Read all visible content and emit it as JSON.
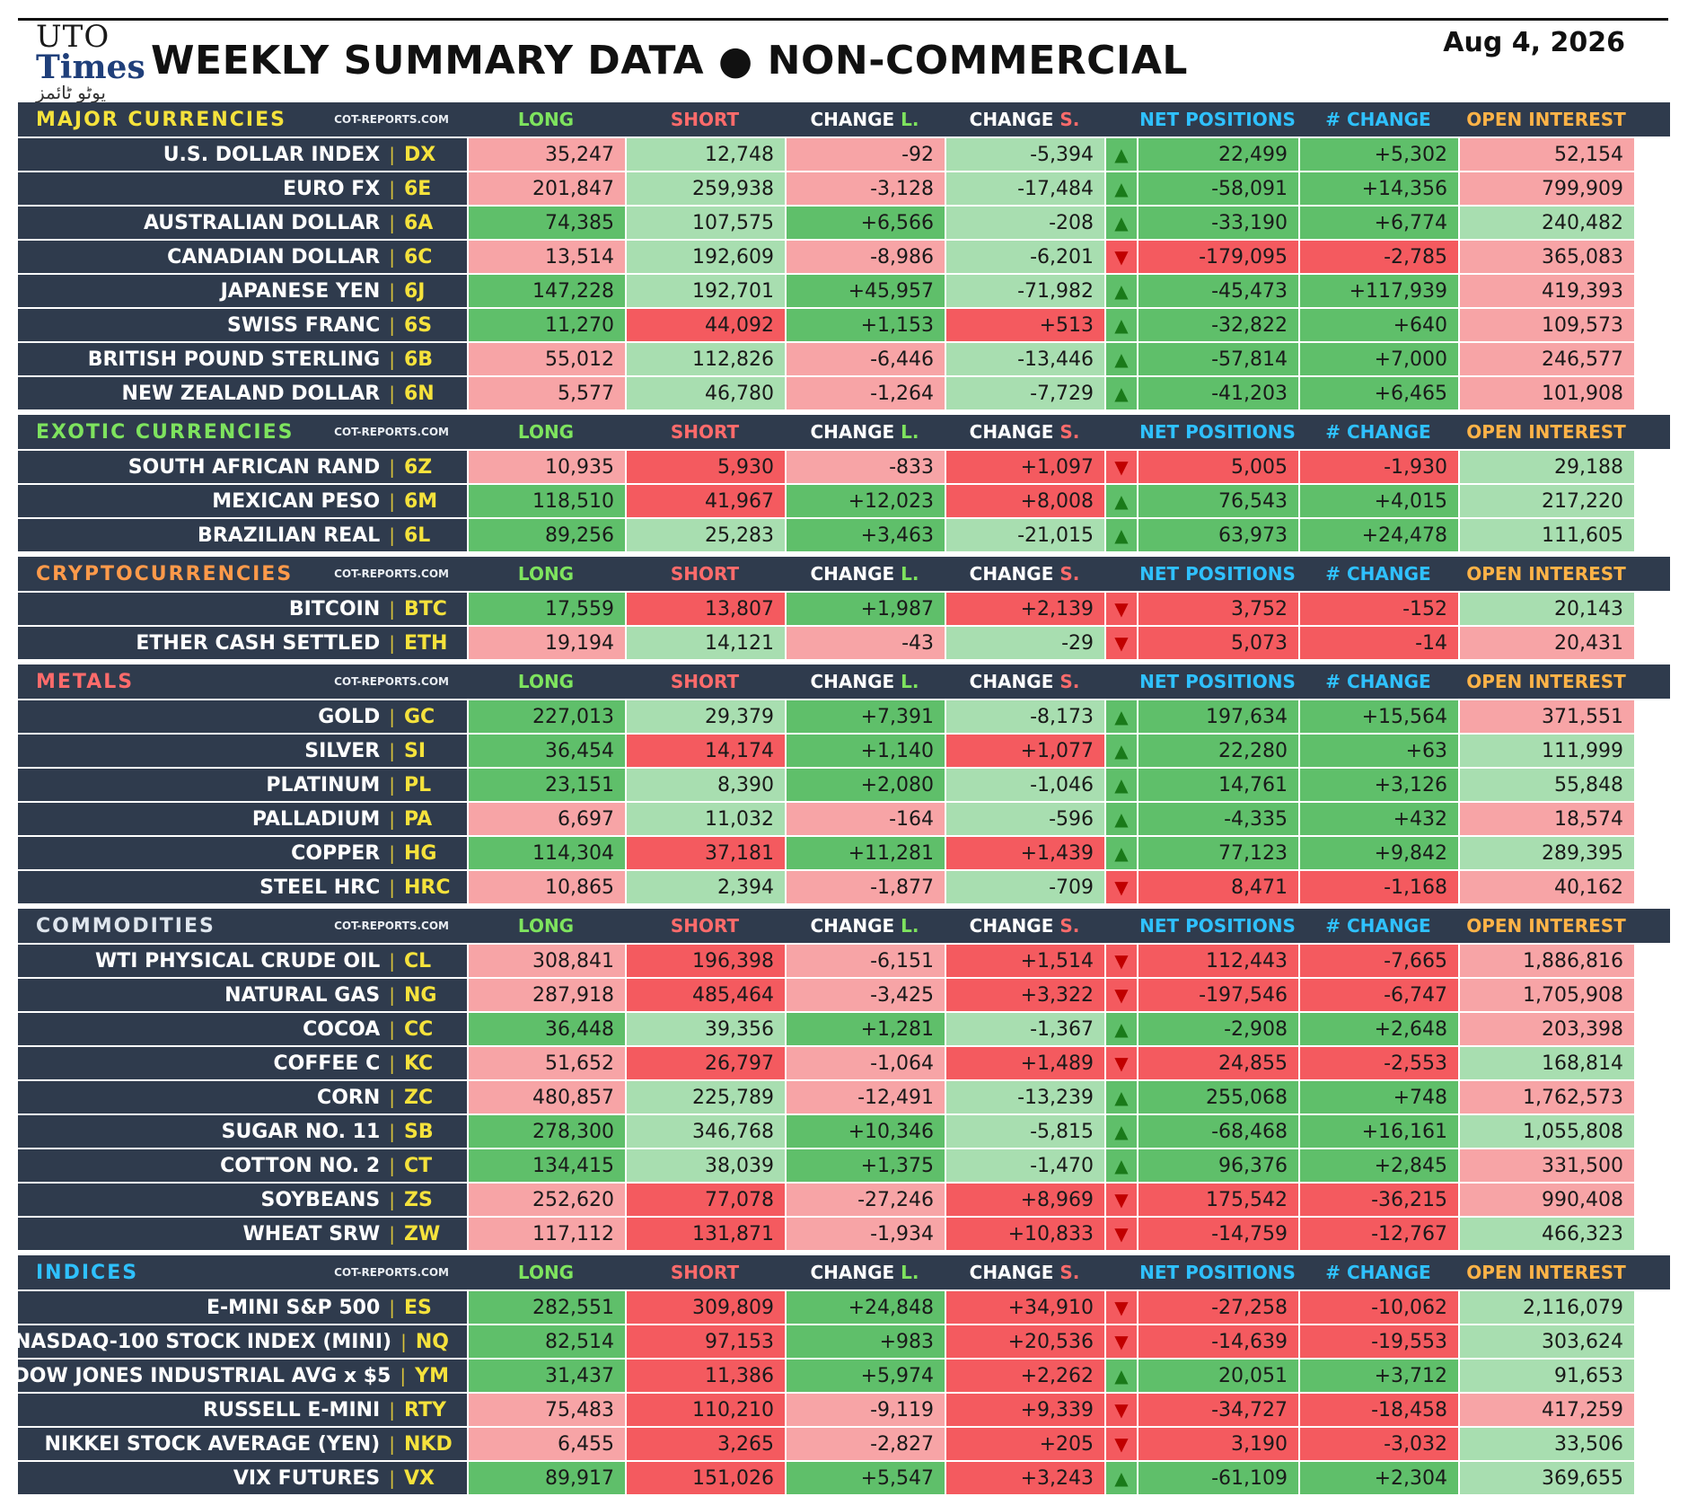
{
  "header": {
    "logo_top": "UTO",
    "logo_main": "Times",
    "logo_urdu": "یوٹو ٹائمز",
    "title": "WEEKLY SUMMARY DATA ● NON-COMMERCIAL",
    "date": "Aug 4, 2026"
  },
  "columns": {
    "source": "COT-REPORTS.COM",
    "long": "LONG",
    "short": "SHORT",
    "change_l_a": "CHANGE ",
    "change_l_b": "L.",
    "change_s_a": "CHANGE ",
    "change_s_b": "S.",
    "net": "NET POSITIONS",
    "change": "# CHANGE",
    "oi": "OPEN INTEREST"
  },
  "colors": {
    "green": "#5fbf6a",
    "light_green": "#a8deb0",
    "red": "#f45a5f",
    "light_red": "#f7a4a6",
    "header_bg": "#2f3b4d"
  },
  "sections": [
    {
      "name": "MAJOR CURRENCIES",
      "color": "#f5e23c",
      "rows": [
        {
          "name": "U.S. DOLLAR INDEX",
          "code": "DX",
          "long": "35,247",
          "short": "12,748",
          "chl": "-92",
          "chs": "-5,394",
          "dir": "up",
          "net": "22,499",
          "nch": "+5,302",
          "oi": "52,154",
          "bg": [
            "lr",
            "lg",
            "lr",
            "lg",
            "g",
            "g",
            "lr"
          ]
        },
        {
          "name": "EURO FX",
          "code": "6E",
          "long": "201,847",
          "short": "259,938",
          "chl": "-3,128",
          "chs": "-17,484",
          "dir": "up",
          "net": "-58,091",
          "nch": "+14,356",
          "oi": "799,909",
          "bg": [
            "lr",
            "lg",
            "lr",
            "lg",
            "g",
            "g",
            "lr"
          ]
        },
        {
          "name": "AUSTRALIAN DOLLAR",
          "code": "6A",
          "long": "74,385",
          "short": "107,575",
          "chl": "+6,566",
          "chs": "-208",
          "dir": "up",
          "net": "-33,190",
          "nch": "+6,774",
          "oi": "240,482",
          "bg": [
            "g",
            "lg",
            "g",
            "lg",
            "g",
            "g",
            "lg"
          ]
        },
        {
          "name": "CANADIAN DOLLAR",
          "code": "6C",
          "long": "13,514",
          "short": "192,609",
          "chl": "-8,986",
          "chs": "-6,201",
          "dir": "down",
          "net": "-179,095",
          "nch": "-2,785",
          "oi": "365,083",
          "bg": [
            "lr",
            "lg",
            "lr",
            "lg",
            "r",
            "r",
            "lr"
          ]
        },
        {
          "name": "JAPANESE YEN",
          "code": "6J",
          "long": "147,228",
          "short": "192,701",
          "chl": "+45,957",
          "chs": "-71,982",
          "dir": "up",
          "net": "-45,473",
          "nch": "+117,939",
          "oi": "419,393",
          "bg": [
            "g",
            "lg",
            "g",
            "lg",
            "g",
            "g",
            "lr"
          ]
        },
        {
          "name": "SWISS FRANC",
          "code": "6S",
          "long": "11,270",
          "short": "44,092",
          "chl": "+1,153",
          "chs": "+513",
          "dir": "up",
          "net": "-32,822",
          "nch": "+640",
          "oi": "109,573",
          "bg": [
            "g",
            "r",
            "g",
            "r",
            "g",
            "g",
            "lr"
          ]
        },
        {
          "name": "BRITISH POUND STERLING",
          "code": "6B",
          "long": "55,012",
          "short": "112,826",
          "chl": "-6,446",
          "chs": "-13,446",
          "dir": "up",
          "net": "-57,814",
          "nch": "+7,000",
          "oi": "246,577",
          "bg": [
            "lr",
            "lg",
            "lr",
            "lg",
            "g",
            "g",
            "lr"
          ]
        },
        {
          "name": "NEW ZEALAND DOLLAR",
          "code": "6N",
          "long": "5,577",
          "short": "46,780",
          "chl": "-1,264",
          "chs": "-7,729",
          "dir": "up",
          "net": "-41,203",
          "nch": "+6,465",
          "oi": "101,908",
          "bg": [
            "lr",
            "lg",
            "lr",
            "lg",
            "g",
            "g",
            "lr"
          ]
        }
      ]
    },
    {
      "name": "EXOTIC CURRENCIES",
      "color": "#7ee35e",
      "rows": [
        {
          "name": "SOUTH AFRICAN RAND",
          "code": "6Z",
          "long": "10,935",
          "short": "5,930",
          "chl": "-833",
          "chs": "+1,097",
          "dir": "down",
          "net": "5,005",
          "nch": "-1,930",
          "oi": "29,188",
          "bg": [
            "lr",
            "r",
            "lr",
            "r",
            "r",
            "r",
            "lg"
          ]
        },
        {
          "name": "MEXICAN PESO",
          "code": "6M",
          "long": "118,510",
          "short": "41,967",
          "chl": "+12,023",
          "chs": "+8,008",
          "dir": "up",
          "net": "76,543",
          "nch": "+4,015",
          "oi": "217,220",
          "bg": [
            "g",
            "r",
            "g",
            "r",
            "g",
            "g",
            "lg"
          ]
        },
        {
          "name": "BRAZILIAN REAL",
          "code": "6L",
          "long": "89,256",
          "short": "25,283",
          "chl": "+3,463",
          "chs": "-21,015",
          "dir": "up",
          "net": "63,973",
          "nch": "+24,478",
          "oi": "111,605",
          "bg": [
            "g",
            "lg",
            "g",
            "lg",
            "g",
            "g",
            "lg"
          ]
        }
      ]
    },
    {
      "name": "CRYPTOCURRENCIES",
      "color": "#ff9a4a",
      "rows": [
        {
          "name": "BITCOIN",
          "code": "BTC",
          "long": "17,559",
          "short": "13,807",
          "chl": "+1,987",
          "chs": "+2,139",
          "dir": "down",
          "net": "3,752",
          "nch": "-152",
          "oi": "20,143",
          "bg": [
            "g",
            "r",
            "g",
            "r",
            "r",
            "r",
            "lg"
          ]
        },
        {
          "name": "ETHER CASH SETTLED",
          "code": "ETH",
          "long": "19,194",
          "short": "14,121",
          "chl": "-43",
          "chs": "-29",
          "dir": "down",
          "net": "5,073",
          "nch": "-14",
          "oi": "20,431",
          "bg": [
            "lr",
            "lg",
            "lr",
            "lg",
            "r",
            "r",
            "lr"
          ]
        }
      ]
    },
    {
      "name": "METALS",
      "color": "#ff6b6b",
      "rows": [
        {
          "name": "GOLD",
          "code": "GC",
          "long": "227,013",
          "short": "29,379",
          "chl": "+7,391",
          "chs": "-8,173",
          "dir": "up",
          "net": "197,634",
          "nch": "+15,564",
          "oi": "371,551",
          "bg": [
            "g",
            "lg",
            "g",
            "lg",
            "g",
            "g",
            "lr"
          ]
        },
        {
          "name": "SILVER",
          "code": "SI",
          "long": "36,454",
          "short": "14,174",
          "chl": "+1,140",
          "chs": "+1,077",
          "dir": "up",
          "net": "22,280",
          "nch": "+63",
          "oi": "111,999",
          "bg": [
            "g",
            "r",
            "g",
            "r",
            "g",
            "g",
            "lg"
          ]
        },
        {
          "name": "PLATINUM",
          "code": "PL",
          "long": "23,151",
          "short": "8,390",
          "chl": "+2,080",
          "chs": "-1,046",
          "dir": "up",
          "net": "14,761",
          "nch": "+3,126",
          "oi": "55,848",
          "bg": [
            "g",
            "lg",
            "g",
            "lg",
            "g",
            "g",
            "lg"
          ]
        },
        {
          "name": "PALLADIUM",
          "code": "PA",
          "long": "6,697",
          "short": "11,032",
          "chl": "-164",
          "chs": "-596",
          "dir": "up",
          "net": "-4,335",
          "nch": "+432",
          "oi": "18,574",
          "bg": [
            "lr",
            "lg",
            "lr",
            "lg",
            "g",
            "g",
            "lr"
          ]
        },
        {
          "name": "COPPER",
          "code": "HG",
          "long": "114,304",
          "short": "37,181",
          "chl": "+11,281",
          "chs": "+1,439",
          "dir": "up",
          "net": "77,123",
          "nch": "+9,842",
          "oi": "289,395",
          "bg": [
            "g",
            "r",
            "g",
            "r",
            "g",
            "g",
            "lg"
          ]
        },
        {
          "name": "STEEL HRC",
          "code": "HRC",
          "long": "10,865",
          "short": "2,394",
          "chl": "-1,877",
          "chs": "-709",
          "dir": "down",
          "net": "8,471",
          "nch": "-1,168",
          "oi": "40,162",
          "bg": [
            "lr",
            "lg",
            "lr",
            "lg",
            "r",
            "r",
            "lr"
          ]
        }
      ]
    },
    {
      "name": "COMMODITIES",
      "color": "#dfe6ee",
      "rows": [
        {
          "name": "WTI PHYSICAL CRUDE OIL",
          "code": "CL",
          "long": "308,841",
          "short": "196,398",
          "chl": "-6,151",
          "chs": "+1,514",
          "dir": "down",
          "net": "112,443",
          "nch": "-7,665",
          "oi": "1,886,816",
          "bg": [
            "lr",
            "r",
            "lr",
            "r",
            "r",
            "r",
            "lr"
          ]
        },
        {
          "name": "NATURAL GAS",
          "code": "NG",
          "long": "287,918",
          "short": "485,464",
          "chl": "-3,425",
          "chs": "+3,322",
          "dir": "down",
          "net": "-197,546",
          "nch": "-6,747",
          "oi": "1,705,908",
          "bg": [
            "lr",
            "r",
            "lr",
            "r",
            "r",
            "r",
            "lr"
          ]
        },
        {
          "name": "COCOA",
          "code": "CC",
          "long": "36,448",
          "short": "39,356",
          "chl": "+1,281",
          "chs": "-1,367",
          "dir": "up",
          "net": "-2,908",
          "nch": "+2,648",
          "oi": "203,398",
          "bg": [
            "g",
            "lg",
            "g",
            "lg",
            "g",
            "g",
            "lr"
          ]
        },
        {
          "name": "COFFEE C",
          "code": "KC",
          "long": "51,652",
          "short": "26,797",
          "chl": "-1,064",
          "chs": "+1,489",
          "dir": "down",
          "net": "24,855",
          "nch": "-2,553",
          "oi": "168,814",
          "bg": [
            "lr",
            "r",
            "lr",
            "r",
            "r",
            "r",
            "lg"
          ]
        },
        {
          "name": "CORN",
          "code": "ZC",
          "long": "480,857",
          "short": "225,789",
          "chl": "-12,491",
          "chs": "-13,239",
          "dir": "up",
          "net": "255,068",
          "nch": "+748",
          "oi": "1,762,573",
          "bg": [
            "lr",
            "lg",
            "lr",
            "lg",
            "g",
            "g",
            "lr"
          ]
        },
        {
          "name": "SUGAR NO. 11",
          "code": "SB",
          "long": "278,300",
          "short": "346,768",
          "chl": "+10,346",
          "chs": "-5,815",
          "dir": "up",
          "net": "-68,468",
          "nch": "+16,161",
          "oi": "1,055,808",
          "bg": [
            "g",
            "lg",
            "g",
            "lg",
            "g",
            "g",
            "lg"
          ]
        },
        {
          "name": "COTTON NO. 2",
          "code": "CT",
          "long": "134,415",
          "short": "38,039",
          "chl": "+1,375",
          "chs": "-1,470",
          "dir": "up",
          "net": "96,376",
          "nch": "+2,845",
          "oi": "331,500",
          "bg": [
            "g",
            "lg",
            "g",
            "lg",
            "g",
            "g",
            "lr"
          ]
        },
        {
          "name": "SOYBEANS",
          "code": "ZS",
          "long": "252,620",
          "short": "77,078",
          "chl": "-27,246",
          "chs": "+8,969",
          "dir": "down",
          "net": "175,542",
          "nch": "-36,215",
          "oi": "990,408",
          "bg": [
            "lr",
            "r",
            "lr",
            "r",
            "r",
            "r",
            "lr"
          ]
        },
        {
          "name": "WHEAT SRW",
          "code": "ZW",
          "long": "117,112",
          "short": "131,871",
          "chl": "-1,934",
          "chs": "+10,833",
          "dir": "down",
          "net": "-14,759",
          "nch": "-12,767",
          "oi": "466,323",
          "bg": [
            "lr",
            "r",
            "lr",
            "r",
            "r",
            "r",
            "lg"
          ]
        }
      ]
    },
    {
      "name": "INDICES",
      "color": "#2fc1ff",
      "rows": [
        {
          "name": "E-MINI S&P 500",
          "code": "ES",
          "long": "282,551",
          "short": "309,809",
          "chl": "+24,848",
          "chs": "+34,910",
          "dir": "down",
          "net": "-27,258",
          "nch": "-10,062",
          "oi": "2,116,079",
          "bg": [
            "g",
            "r",
            "g",
            "r",
            "r",
            "r",
            "lg"
          ]
        },
        {
          "name": "NASDAQ-100 STOCK INDEX (MINI)",
          "code": "NQ",
          "long": "82,514",
          "short": "97,153",
          "chl": "+983",
          "chs": "+20,536",
          "dir": "down",
          "net": "-14,639",
          "nch": "-19,553",
          "oi": "303,624",
          "bg": [
            "g",
            "r",
            "g",
            "r",
            "r",
            "r",
            "lg"
          ]
        },
        {
          "name": "DOW JONES INDUSTRIAL AVG x $5",
          "code": "YM",
          "long": "31,437",
          "short": "11,386",
          "chl": "+5,974",
          "chs": "+2,262",
          "dir": "up",
          "net": "20,051",
          "nch": "+3,712",
          "oi": "91,653",
          "bg": [
            "g",
            "r",
            "g",
            "r",
            "g",
            "g",
            "lg"
          ]
        },
        {
          "name": "RUSSELL E-MINI",
          "code": "RTY",
          "long": "75,483",
          "short": "110,210",
          "chl": "-9,119",
          "chs": "+9,339",
          "dir": "down",
          "net": "-34,727",
          "nch": "-18,458",
          "oi": "417,259",
          "bg": [
            "lr",
            "r",
            "lr",
            "r",
            "r",
            "r",
            "lr"
          ]
        },
        {
          "name": "NIKKEI STOCK AVERAGE (YEN)",
          "code": "NKD",
          "long": "6,455",
          "short": "3,265",
          "chl": "-2,827",
          "chs": "+205",
          "dir": "down",
          "net": "3,190",
          "nch": "-3,032",
          "oi": "33,506",
          "bg": [
            "lr",
            "r",
            "lr",
            "r",
            "r",
            "r",
            "lg"
          ]
        },
        {
          "name": "VIX FUTURES",
          "code": "VX",
          "long": "89,917",
          "short": "151,026",
          "chl": "+5,547",
          "chs": "+3,243",
          "dir": "up",
          "net": "-61,109",
          "nch": "+2,304",
          "oi": "369,655",
          "bg": [
            "g",
            "r",
            "g",
            "r",
            "g",
            "g",
            "lg"
          ]
        }
      ]
    }
  ]
}
